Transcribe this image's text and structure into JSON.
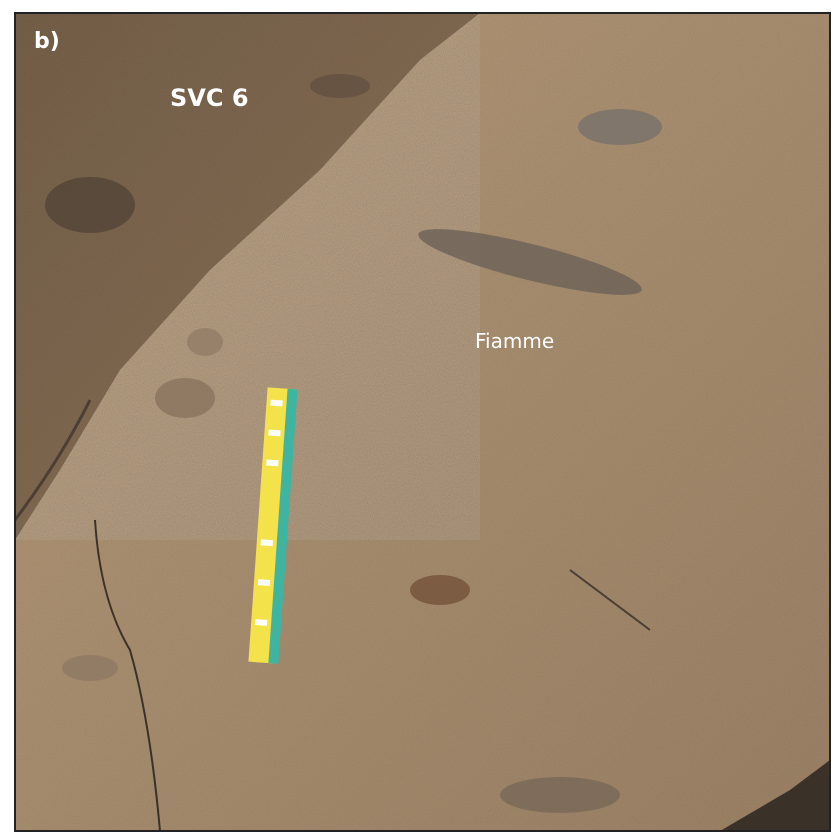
{
  "panel_label": "b)",
  "labels": {
    "unit": "SVC 6",
    "feature": "Fiamme"
  }
}
